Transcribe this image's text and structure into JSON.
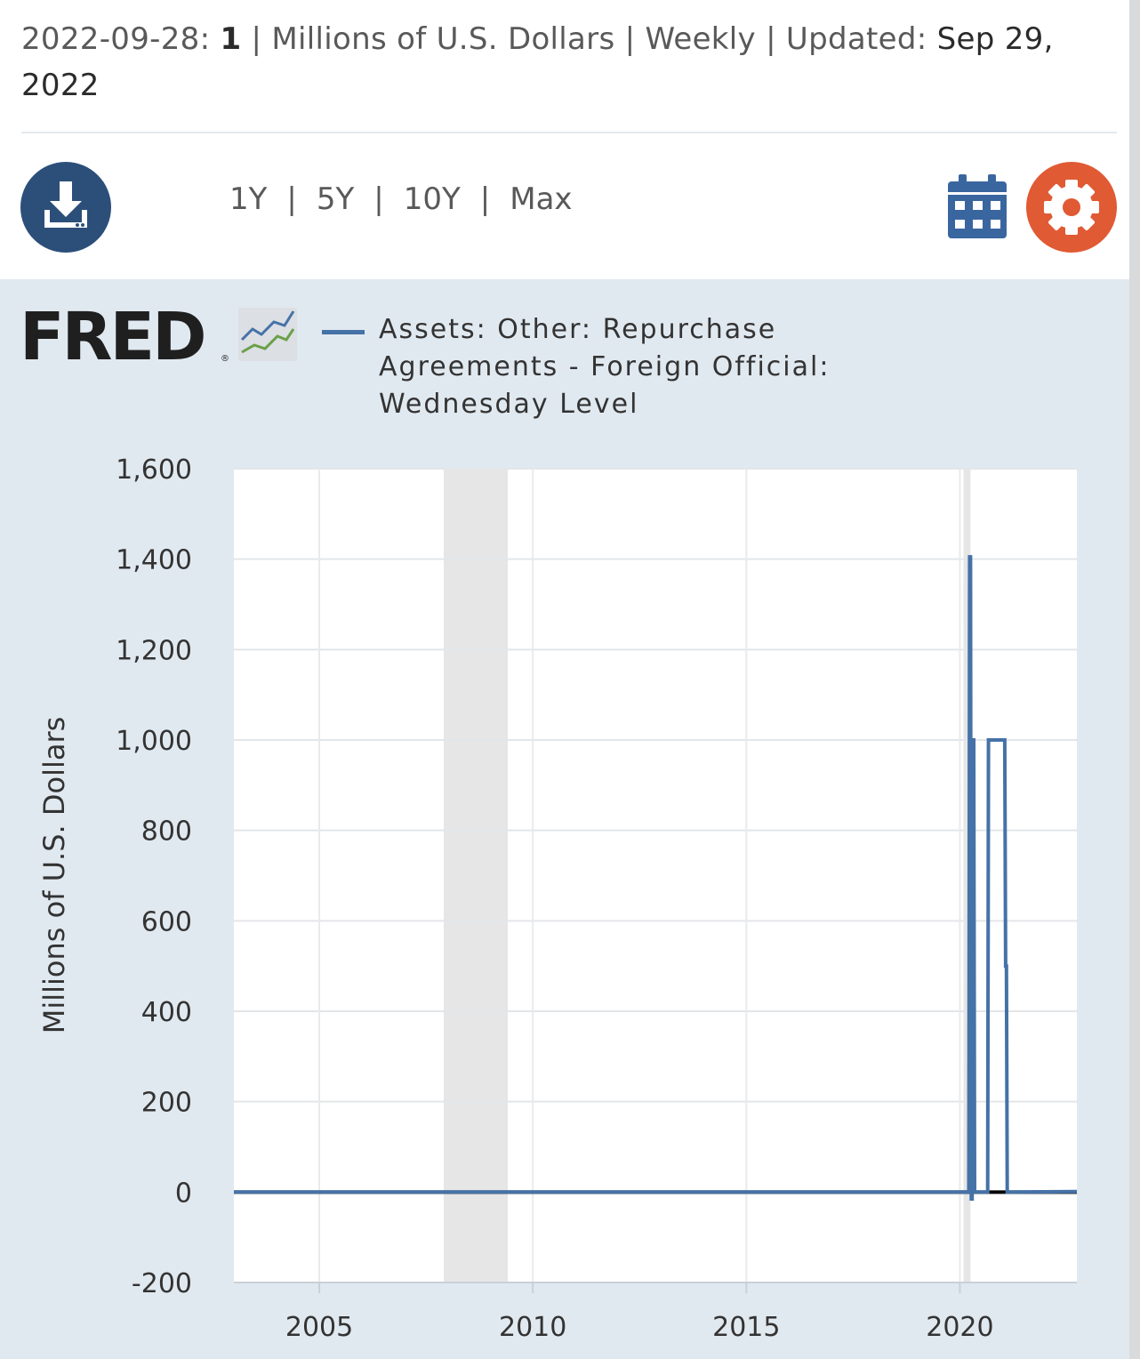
{
  "header": {
    "date_label": "2022-09-28: ",
    "latest_value": "1",
    "units_segment": " | Millions of U.S. Dollars | Weekly | Updated: ",
    "updated_date": "Sep 29, 2022"
  },
  "toolbar": {
    "ranges": [
      "1Y",
      "5Y",
      "10Y",
      "Max"
    ],
    "separator": "|",
    "download_icon": "download-icon",
    "calendar_icon": "calendar-icon",
    "settings_icon": "gear-icon"
  },
  "colors": {
    "series": "#4572a7",
    "panel_bg": "#e1e9f0",
    "download_bg": "#2c4f7a",
    "settings_bg": "#e05a33",
    "recession": "#e6e6e6"
  },
  "logo": {
    "text": "FRED",
    "registered": "®"
  },
  "chart_data": {
    "type": "line",
    "title": "",
    "xlabel": "",
    "ylabel": "Millions of U.S. Dollars",
    "xlim": [
      "2003-01-01",
      "2022-09-28"
    ],
    "ylim": [
      -200,
      1600
    ],
    "yticks": [
      -200,
      0,
      200,
      400,
      600,
      800,
      1000,
      1200,
      1400,
      1600
    ],
    "ytick_labels": [
      "-200",
      "0",
      "200",
      "400",
      "600",
      "800",
      "1,000",
      "1,200",
      "1,400",
      "1,600"
    ],
    "xticks": [
      "2005-01-01",
      "2010-01-01",
      "2015-01-01",
      "2020-01-01"
    ],
    "xtick_labels": [
      "2005",
      "2010",
      "2015",
      "2020"
    ],
    "grid": true,
    "legend_position": "top",
    "recessions": [
      [
        "2007-12-01",
        "2009-06-01"
      ],
      [
        "2020-02-01",
        "2020-04-01"
      ]
    ],
    "series": [
      {
        "name": "Assets: Other: Repurchase Agreements - Foreign Official: Wednesday Level",
        "points": [
          [
            "2003-01-01",
            0
          ],
          [
            "2020-03-18",
            0
          ],
          [
            "2020-03-25",
            1405
          ],
          [
            "2020-04-01",
            1405
          ],
          [
            "2020-04-08",
            -15
          ],
          [
            "2020-04-15",
            -15
          ],
          [
            "2020-04-22",
            1000
          ],
          [
            "2020-04-29",
            1000
          ],
          [
            "2020-05-06",
            0
          ],
          [
            "2020-08-26",
            0
          ],
          [
            "2020-09-02",
            1000
          ],
          [
            "2021-01-20",
            1000
          ],
          [
            "2021-01-27",
            500
          ],
          [
            "2021-02-03",
            500
          ],
          [
            "2021-02-10",
            0
          ],
          [
            "2022-09-28",
            1
          ]
        ]
      }
    ]
  }
}
